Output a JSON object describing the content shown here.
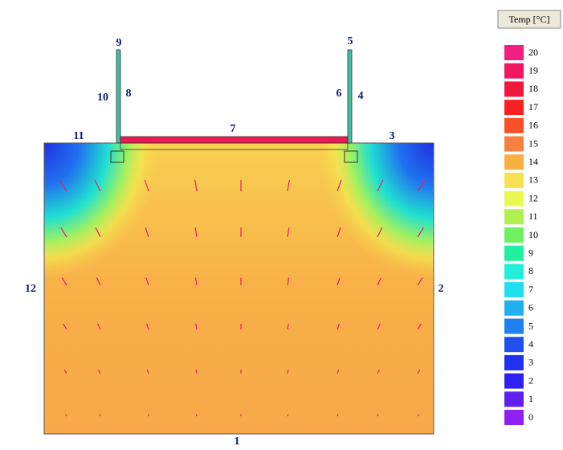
{
  "legend": {
    "title": "Temp [°C]",
    "entries": [
      {
        "label": "20",
        "color": "#f01f80"
      },
      {
        "label": "19",
        "color": "#f01860"
      },
      {
        "label": "18",
        "color": "#f0183c"
      },
      {
        "label": "17",
        "color": "#f82020"
      },
      {
        "label": "16",
        "color": "#f85028"
      },
      {
        "label": "15",
        "color": "#f88040"
      },
      {
        "label": "14",
        "color": "#f8b040"
      },
      {
        "label": "13",
        "color": "#f8e050"
      },
      {
        "label": "12",
        "color": "#e8f850"
      },
      {
        "label": "11",
        "color": "#b0f050"
      },
      {
        "label": "10",
        "color": "#70f060"
      },
      {
        "label": "9",
        "color": "#20f0a0"
      },
      {
        "label": "8",
        "color": "#20f0d8"
      },
      {
        "label": "7",
        "color": "#20e0f0"
      },
      {
        "label": "6",
        "color": "#20b0f0"
      },
      {
        "label": "5",
        "color": "#2080f0"
      },
      {
        "label": "4",
        "color": "#2050f0"
      },
      {
        "label": "3",
        "color": "#2030f0"
      },
      {
        "label": "2",
        "color": "#3020f0"
      },
      {
        "label": "1",
        "color": "#6020f0"
      },
      {
        "label": "0",
        "color": "#9020f0"
      }
    ]
  },
  "boundaries": [
    "1",
    "2",
    "3",
    "4",
    "5",
    "6",
    "7",
    "8",
    "9",
    "10",
    "11",
    "12"
  ]
}
